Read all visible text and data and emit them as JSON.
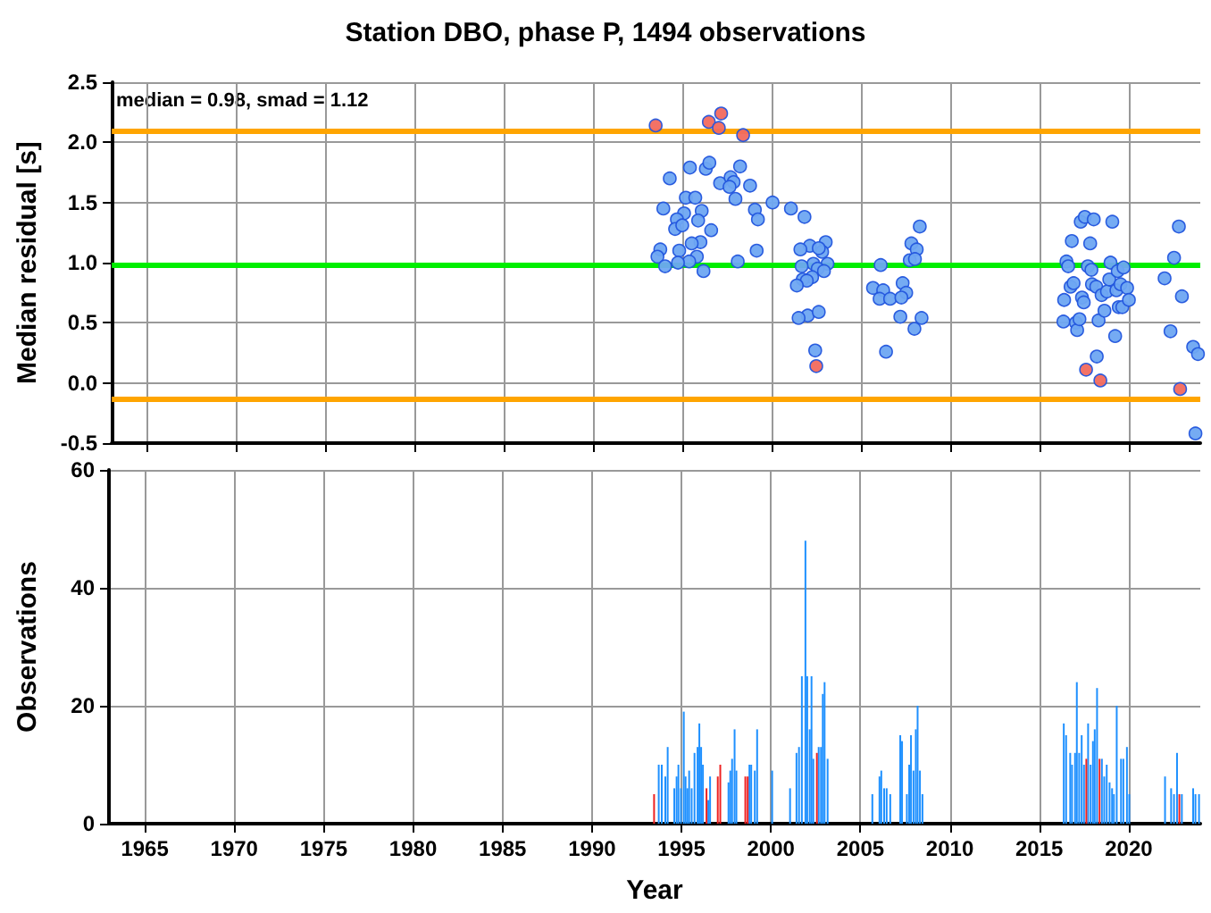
{
  "chart_data": [
    {
      "type": "scatter",
      "title": "Station DBO, phase P, 1494 observations",
      "ylabel": "Median residual [s]",
      "annotations": [
        "median = 0.98, smad = 1.12"
      ],
      "xlim": [
        1963,
        2024
      ],
      "xticks": [
        1965,
        1970,
        1975,
        1980,
        1985,
        1990,
        1995,
        2000,
        2005,
        2010,
        2015,
        2020
      ],
      "ylim": [
        -0.5,
        2.5
      ],
      "yticks": [
        {
          "value": -0.5,
          "label": "-0.5"
        },
        {
          "value": 0,
          "label": "0.0"
        },
        {
          "value": 0.5,
          "label": "0.5"
        },
        {
          "value": 1,
          "label": "1.0"
        },
        {
          "value": 1.5,
          "label": "1.5"
        },
        {
          "value": 2,
          "label": "2.0"
        },
        {
          "value": 2.5,
          "label": "2.5"
        }
      ],
      "tick_labels": "y",
      "grid": true,
      "marker": "circle",
      "ref_lines": [
        {
          "axis": "y",
          "value": 2.1,
          "color": "#ffa500"
        },
        {
          "axis": "y",
          "value": 0.98,
          "color": "#00ee00"
        },
        {
          "axis": "y",
          "value": -0.13,
          "color": "#ffa500"
        }
      ],
      "series": [
        {
          "color": "#6ea6f2",
          "x": [
            1994.27,
            1995.4,
            1996.29,
            1996.49,
            1998.21,
            1997.09,
            1997.68,
            1997.85,
            1997.62,
            1998.77,
            1997.95,
            1995.17,
            1995.7,
            1993.91,
            1995.07,
            1994.67,
            1996.06,
            1995.86,
            1994.57,
            1994.97,
            1996.59,
            1999.04,
            1999.21,
            2000.03,
            2001.06,
            2001.82,
            1995.99,
            1995.5,
            1999.14,
            1993.74,
            1993.58,
            1994.8,
            1995.79,
            1995.36,
            1994.73,
            1994.01,
            1996.16,
            1998.08,
            2003.01,
            2002.12,
            2001.59,
            2002.81,
            2002.62,
            2003.11,
            2002.32,
            2001.66,
            2002.56,
            2002.91,
            2002.25,
            2001.72,
            2001.95,
            2001.39,
            2002.0,
            2001.49,
            2002.62,
            2002.42,
            2006.09,
            2008.28,
            2007.81,
            2008.11,
            2007.72,
            2008.01,
            2005.66,
            2006.23,
            2006.03,
            2006.62,
            2007.32,
            2007.52,
            2007.25,
            2007.19,
            2008.38,
            2007.98,
            2006.39,
            2016.37,
            2016.33,
            2016.5,
            2016.6,
            2016.8,
            2016.73,
            2016.9,
            2017.03,
            2017.1,
            2017.23,
            2017.3,
            2017.53,
            2017.37,
            2017.47,
            2017.7,
            2017.83,
            2017.9,
            2017.93,
            2018.03,
            2018.17,
            2018.2,
            2018.3,
            2018.47,
            2018.63,
            2018.77,
            2018.9,
            2018.97,
            2019.07,
            2019.23,
            2019.3,
            2019.37,
            2019.43,
            2019.53,
            2019.63,
            2019.7,
            2019.9,
            2020.0,
            2022.0,
            2022.33,
            2022.53,
            2022.8,
            2022.97,
            2023.6,
            2023.87,
            2023.73
          ],
          "values": [
            1.7,
            1.79,
            1.78,
            1.83,
            1.8,
            1.66,
            1.71,
            1.67,
            1.63,
            1.64,
            1.53,
            1.54,
            1.54,
            1.45,
            1.41,
            1.36,
            1.43,
            1.35,
            1.28,
            1.31,
            1.27,
            1.44,
            1.36,
            1.5,
            1.45,
            1.38,
            1.17,
            1.16,
            1.1,
            1.11,
            1.05,
            1.1,
            1.05,
            1.01,
            1.0,
            0.97,
            0.93,
            1.01,
            1.17,
            1.14,
            1.11,
            1.09,
            1.12,
            0.99,
            0.99,
            0.97,
            0.95,
            0.93,
            0.88,
            0.86,
            0.85,
            0.81,
            0.56,
            0.54,
            0.59,
            0.27,
            0.98,
            1.3,
            1.16,
            1.11,
            1.02,
            1.03,
            0.79,
            0.77,
            0.7,
            0.7,
            0.83,
            0.75,
            0.71,
            0.55,
            0.54,
            0.45,
            0.26,
            0.69,
            0.51,
            1.01,
            0.97,
            1.18,
            0.8,
            0.83,
            0.5,
            0.44,
            0.53,
            1.34,
            1.38,
            0.71,
            0.67,
            0.97,
            1.16,
            0.94,
            0.82,
            1.36,
            0.8,
            0.22,
            0.52,
            0.73,
            0.6,
            0.76,
            0.86,
            1.0,
            1.34,
            0.39,
            0.77,
            0.93,
            0.63,
            0.82,
            0.63,
            0.96,
            0.79,
            0.69,
            0.87,
            0.43,
            1.04,
            1.3,
            0.72,
            0.3,
            0.24,
            -0.42
          ]
        },
        {
          "color": "#f26a5e",
          "x": [
            1993.48,
            1996.46,
            1997.15,
            1997.02,
            1998.38,
            2002.48,
            2017.6,
            2018.4,
            2022.87
          ],
          "values": [
            2.14,
            2.17,
            2.24,
            2.12,
            2.06,
            0.14,
            0.11,
            0.02,
            -0.05
          ]
        }
      ]
    },
    {
      "type": "bar",
      "xlabel": "Year",
      "ylabel": "Observations",
      "xlim": [
        1963,
        2024
      ],
      "xticks": [
        1965,
        1970,
        1975,
        1980,
        1985,
        1990,
        1995,
        2000,
        2005,
        2010,
        2015,
        2020
      ],
      "ylim": [
        0,
        60
      ],
      "yticks": [
        0,
        20,
        40,
        60
      ],
      "grid": true,
      "series": [
        {
          "color": "#1e90ff",
          "x": [
            1993.73,
            1993.9,
            1994.1,
            1994.23,
            1994.6,
            1994.73,
            1994.83,
            1994.97,
            1995.13,
            1995.23,
            1995.33,
            1995.43,
            1995.57,
            1995.73,
            1995.9,
            1996.0,
            1996.1,
            1996.2,
            1996.5,
            1996.6,
            1997.63,
            1997.73,
            1997.83,
            1997.97,
            1998.07,
            1998.8,
            1998.9,
            1999.1,
            1999.23,
            2000.07,
            2001.07,
            2001.43,
            2001.57,
            2001.73,
            2001.93,
            2002.03,
            2002.17,
            2002.27,
            2002.37,
            2002.67,
            2002.8,
            2002.9,
            2003.0,
            2003.17,
            2005.67,
            2006.07,
            2006.17,
            2006.33,
            2006.47,
            2006.67,
            2007.23,
            2007.33,
            2007.6,
            2007.73,
            2007.83,
            2007.97,
            2008.1,
            2008.2,
            2008.33,
            2008.47,
            2016.37,
            2016.5,
            2016.73,
            2016.83,
            2017.0,
            2017.1,
            2017.23,
            2017.37,
            2017.5,
            2017.73,
            2017.87,
            2018.0,
            2018.1,
            2018.23,
            2018.5,
            2018.63,
            2018.77,
            2018.93,
            2019.07,
            2019.17,
            2019.33,
            2019.57,
            2019.7,
            2019.9,
            2020.03,
            2022.03,
            2022.37,
            2022.53,
            2022.7,
            2022.97,
            2023.6,
            2023.73,
            2023.93
          ],
          "values": [
            10,
            10,
            8,
            13,
            6,
            8,
            10,
            6,
            19,
            8,
            6,
            9,
            6,
            12,
            13,
            17,
            13,
            10,
            4,
            8,
            7,
            9,
            11,
            16,
            9,
            10,
            10,
            9,
            16,
            9,
            6,
            12,
            13,
            25,
            48,
            25,
            16,
            25,
            11,
            13,
            13,
            22,
            24,
            11,
            5,
            8,
            9,
            6,
            6,
            5,
            15,
            14,
            5,
            10,
            15,
            9,
            16,
            20,
            9,
            5,
            17,
            15,
            12,
            10,
            12,
            24,
            12,
            15,
            10,
            17,
            10,
            14,
            16,
            23,
            11,
            8,
            10,
            7,
            6,
            5,
            20,
            11,
            11,
            13,
            5,
            8,
            6,
            5,
            12,
            5,
            6,
            5,
            5
          ]
        },
        {
          "color": "#ee2222",
          "x": [
            1993.47,
            1996.4,
            1997.03,
            1997.17,
            1998.57,
            1998.7,
            2002.57,
            2017.63,
            2018.37,
            2022.83
          ],
          "values": [
            5,
            6,
            8,
            10,
            8,
            8,
            12,
            11,
            11,
            5
          ]
        }
      ]
    }
  ]
}
